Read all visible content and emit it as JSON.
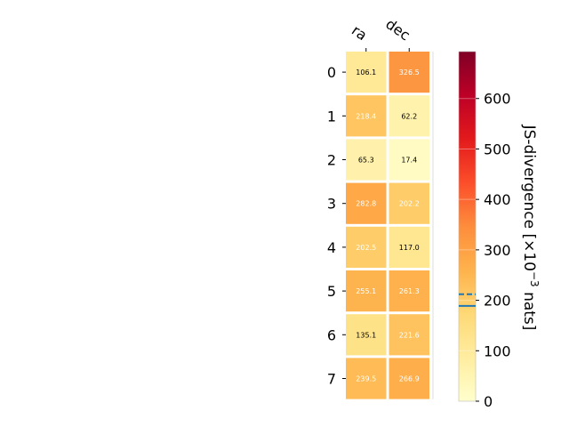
{
  "chart_data": {
    "type": "heatmap",
    "columns": [
      "ra",
      "dec"
    ],
    "rows": [
      "0",
      "1",
      "2",
      "3",
      "4",
      "5",
      "6",
      "7"
    ],
    "values": [
      [
        106.1,
        326.5
      ],
      [
        218.4,
        62.2
      ],
      [
        65.3,
        17.4
      ],
      [
        282.8,
        202.2
      ],
      [
        202.5,
        117.0
      ],
      [
        255.1,
        261.3
      ],
      [
        135.1,
        221.6
      ],
      [
        239.5,
        266.9
      ]
    ],
    "value_labels": [
      [
        "106.1",
        "326.5"
      ],
      [
        "218.4",
        "62.2"
      ],
      [
        "65.3",
        "17.4"
      ],
      [
        "282.8",
        "202.2"
      ],
      [
        "202.5",
        "117.0"
      ],
      [
        "255.1",
        "261.3"
      ],
      [
        "135.1",
        "221.6"
      ],
      [
        "239.5",
        "266.9"
      ]
    ],
    "colormap": "YlOrRd",
    "colorbar": {
      "label_main": "JS-divergence [×10",
      "label_exp": "−3",
      "label_unit": " nats]",
      "range": [
        0,
        693
      ],
      "ticks": [
        0,
        100,
        200,
        300,
        400,
        500,
        600
      ],
      "tick_labels": [
        "0",
        "100",
        "200",
        "300",
        "400",
        "500",
        "600"
      ],
      "threshold_dashed": 212,
      "threshold_solid": 189,
      "threshold_color": "#1f77b4"
    }
  }
}
